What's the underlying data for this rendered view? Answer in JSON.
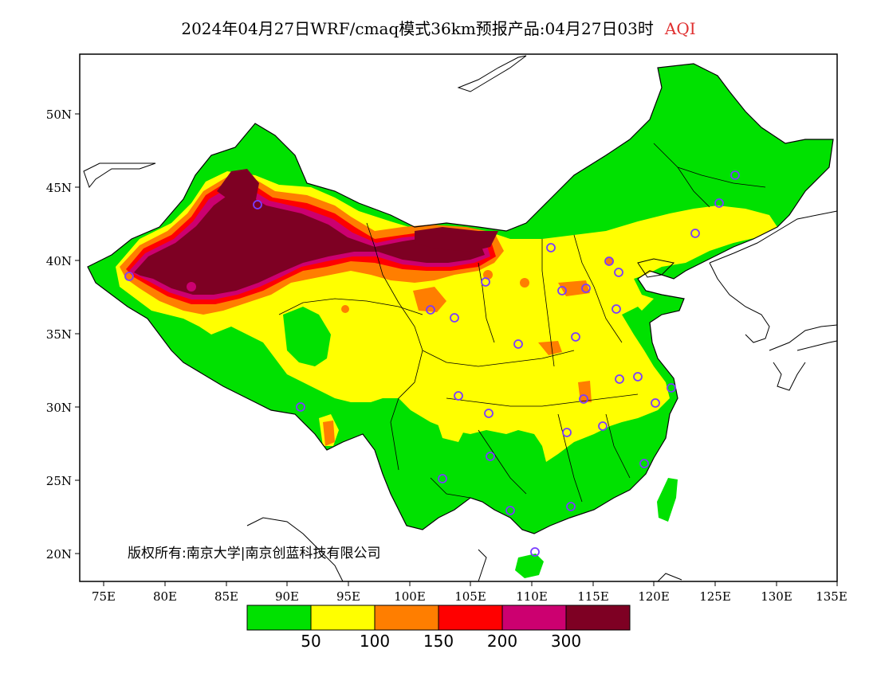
{
  "map": {
    "title_product": "2024年04月27日WRF/cmaq模式36km预报产品:04月27日03时",
    "title_variable": "AQI",
    "copyright": "版权所有:南京大学|南京创蓝科技有限公司",
    "lat_ticks": [
      "50N",
      "45N",
      "40N",
      "35N",
      "30N",
      "25N",
      "20N"
    ],
    "lon_ticks": [
      "75E",
      "80E",
      "85E",
      "90E",
      "95E",
      "100E",
      "105E",
      "110E",
      "115E",
      "120E",
      "125E",
      "130E",
      "135E"
    ],
    "legend": {
      "colors": [
        "#00e100",
        "#ffff00",
        "#ff7e00",
        "#ff0000",
        "#cc0070",
        "#7e0023"
      ],
      "labels": [
        "50",
        "100",
        "150",
        "200",
        "300"
      ]
    },
    "colors": {
      "good": "#00e100",
      "moderate": "#ffff00",
      "usg": "#ff7e00",
      "unhealthy": "#ff0000",
      "very_unhealthy": "#cc0070",
      "hazardous": "#7e0023",
      "station_marker": "#7a3cff",
      "boundary": "#000000"
    }
  }
}
